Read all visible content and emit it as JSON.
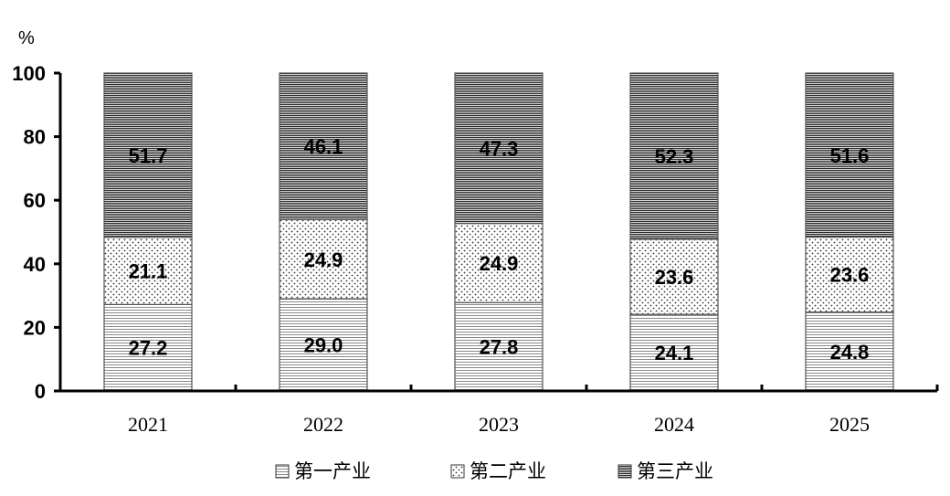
{
  "chart_data": {
    "type": "bar",
    "stacked": true,
    "y_unit_label": "%",
    "categories": [
      "2021",
      "2022",
      "2023",
      "2024",
      "2025"
    ],
    "ylim": [
      0,
      100
    ],
    "yticks": [
      0,
      20,
      40,
      60,
      80,
      100
    ],
    "series": [
      {
        "name": "第一产业",
        "values": [
          27.2,
          29.0,
          27.8,
          24.1,
          24.8
        ],
        "labels": [
          "27.2",
          "29.0",
          "27.8",
          "24.1",
          "24.8"
        ],
        "pattern": "fine-horizontal-lines"
      },
      {
        "name": "第二产业",
        "values": [
          21.1,
          24.9,
          24.9,
          23.6,
          23.6
        ],
        "labels": [
          "21.1",
          "24.9",
          "24.9",
          "23.6",
          "23.6"
        ],
        "pattern": "dots"
      },
      {
        "name": "第三产业",
        "values": [
          51.7,
          46.1,
          47.3,
          52.3,
          51.6
        ],
        "labels": [
          "51.7",
          "46.1",
          "47.3",
          "52.3",
          "51.6"
        ],
        "pattern": "dense-horizontal-lines"
      }
    ],
    "legend_position": "bottom",
    "grid": false,
    "colors": {
      "axis": "#000000",
      "bar_outline": "#555555",
      "pattern_ink": "#333333",
      "background": "#ffffff"
    }
  }
}
